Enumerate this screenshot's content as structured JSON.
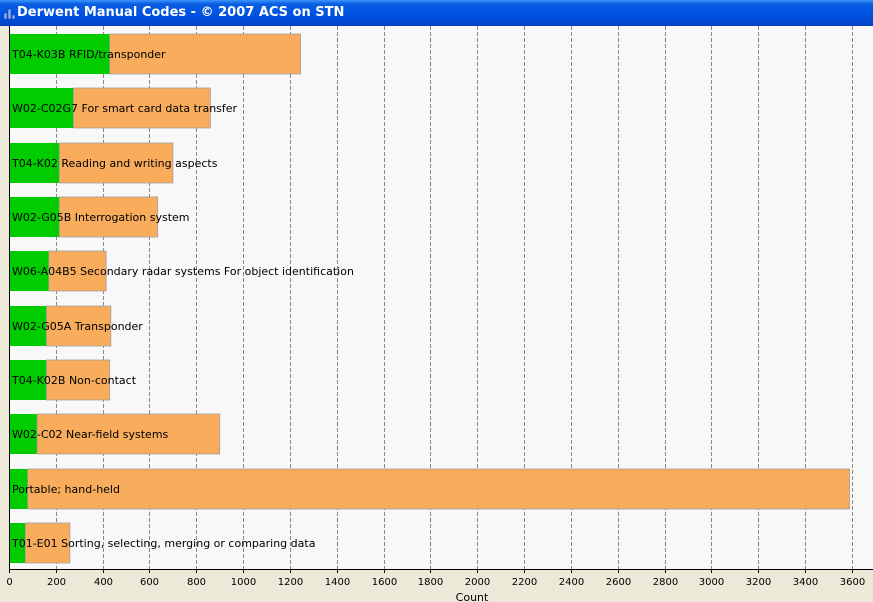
{
  "window": {
    "title": "Derwent Manual Codes - © 2007 ACS on STN",
    "icon": "bar-chart-icon"
  },
  "colors": {
    "title_bar": "#0054e3",
    "plot_background": "#f8f8f8",
    "gridline": "#888888",
    "series_primary": "#00cc00",
    "series_secondary": "#f8ac5c",
    "bar_outline": "#a0a0a0"
  },
  "chart_data": {
    "type": "bar",
    "orientation": "horizontal",
    "stacked": true,
    "categories": [
      "T04-K03B RFID/transponder",
      "W02-C02G7 For smart card data transfer",
      "T04-K02 Reading and writing aspects",
      "W02-G05B Interrogation system",
      "W06-A04B5 Secondary radar systems For object identification",
      "W02-G05A Transponder",
      "T04-K02B Non-contact",
      "W02-C02 Near-field systems",
      "Portable; hand-held",
      "T01-E01 Sorting, selecting, merging or comparing data"
    ],
    "series": [
      {
        "values": [
          430,
          275,
          215,
          215,
          170,
          160,
          160,
          120,
          80,
          70
        ]
      },
      {
        "values": [
          815,
          585,
          485,
          420,
          245,
          275,
          270,
          780,
          3510,
          190
        ]
      }
    ],
    "xlabel": "Count",
    "ylabel": "",
    "xlim": [
      0,
      3690
    ],
    "xticks": [
      0,
      200,
      400,
      600,
      800,
      1000,
      1200,
      1400,
      1600,
      1800,
      2000,
      2200,
      2400,
      2600,
      2800,
      3000,
      3200,
      3400,
      3600
    ],
    "grid": "vertical dashed",
    "legend": "none"
  }
}
